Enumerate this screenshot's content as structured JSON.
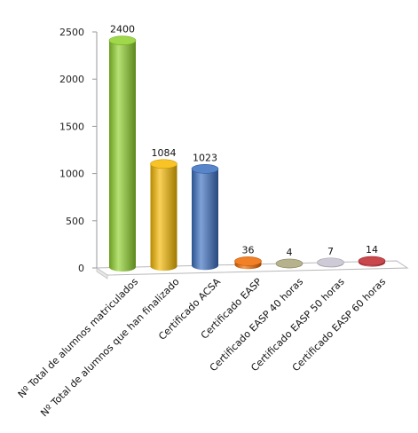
{
  "chart_data": {
    "type": "bar",
    "style": "3d-cylinder",
    "title": "",
    "xlabel": "",
    "ylabel": "",
    "ylim": [
      0,
      2500
    ],
    "yticks": [
      0,
      500,
      1000,
      1500,
      2000,
      2500
    ],
    "grid": false,
    "legend": "none",
    "categories": [
      "Nº Total de alumnos matriculados",
      "Nº Total de alumnos que han finalizado",
      "Certificado ACSA",
      "Certificado EASP",
      "Certificado EASP 40 horas",
      "Certificado EASP 50 horas",
      "Certificado EASP 60 horas"
    ],
    "values": [
      2400,
      1084,
      1023,
      36,
      4,
      7,
      14
    ],
    "data_labels": [
      "2400",
      "1084",
      "1023",
      "36",
      "4",
      "7",
      "14"
    ],
    "colors": [
      "#8fd12b",
      "#f5b800",
      "#3a6fc0",
      "#f06a00",
      "#a8a478",
      "#c7c2cf",
      "#c0282e"
    ]
  }
}
